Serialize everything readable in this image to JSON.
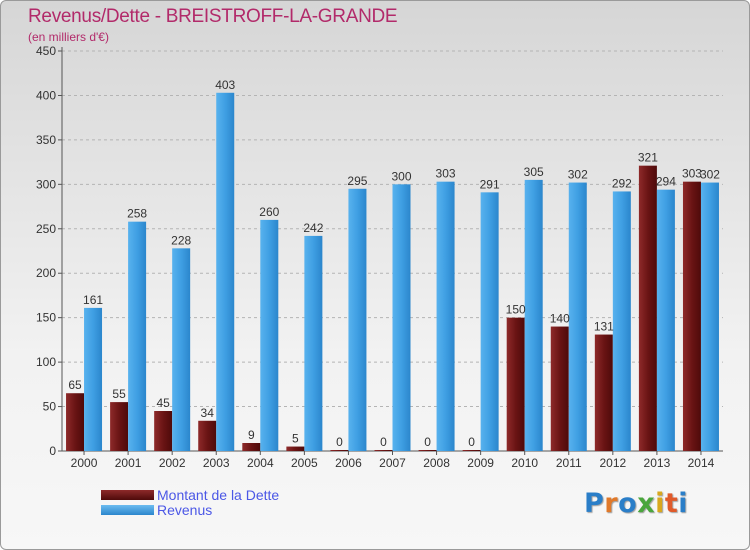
{
  "header": {
    "title": "Revenus/Dette - BREISTROFF-LA-GRANDE",
    "subtitle": "(en milliers d'€)"
  },
  "legend": {
    "debt_label": "Montant de la Dette",
    "revenue_label": "Revenus"
  },
  "logo": {
    "text": "Proxiti",
    "letter_colors": [
      "#2a7ec8",
      "#e0792a",
      "#2a7ec8",
      "#4aa63c",
      "#d9a81e",
      "#e05a2a",
      "#2a7ec8"
    ]
  },
  "colors": {
    "debt": "#7a1c1c",
    "revenue": "#3d9ee2",
    "title": "#b22a6a",
    "legend_text": "#4b57e6"
  },
  "chart_data": {
    "type": "bar",
    "title": "Revenus/Dette - BREISTROFF-LA-GRANDE",
    "subtitle": "(en milliers d'€)",
    "xlabel": "",
    "ylabel": "",
    "ylim": [
      0,
      450
    ],
    "yticks": [
      0,
      50,
      100,
      150,
      200,
      250,
      300,
      350,
      400,
      450
    ],
    "grid": "horizontal dashed",
    "legend_position": "bottom-left",
    "categories": [
      "2000",
      "2001",
      "2002",
      "2003",
      "2004",
      "2005",
      "2006",
      "2007",
      "2008",
      "2009",
      "2010",
      "2011",
      "2012",
      "2013",
      "2014"
    ],
    "series": [
      {
        "name": "Montant de la Dette",
        "values": [
          65,
          55,
          45,
          34,
          9,
          5,
          0,
          0,
          0,
          0,
          150,
          140,
          131,
          321,
          303
        ]
      },
      {
        "name": "Revenus",
        "values": [
          161,
          258,
          228,
          403,
          260,
          242,
          295,
          300,
          303,
          291,
          305,
          302,
          292,
          294,
          302
        ]
      }
    ]
  }
}
